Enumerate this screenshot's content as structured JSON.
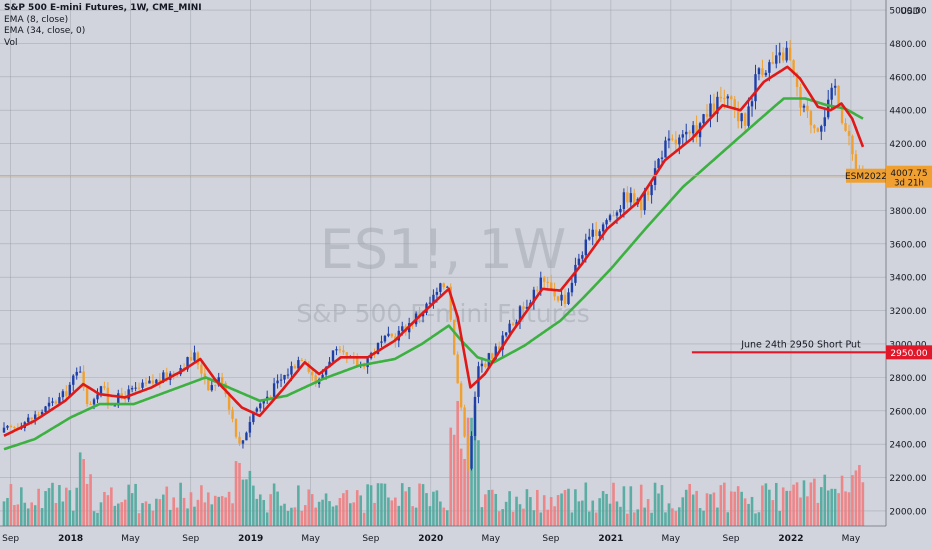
{
  "header": {
    "title": "S&P 500 E-mini Futures, 1W, CME_MINI",
    "indicators": [
      "EMA (8, close)",
      "EMA (34, close, 0)",
      "Vol"
    ]
  },
  "watermark": {
    "symbol": "ES1!, 1W",
    "name": "S&P 500 E-mini Futures"
  },
  "colors": {
    "background": "#d1d4dc",
    "grid": "#8a8d95",
    "up": "#1e3fa8",
    "down": "#f0a030",
    "ema8": "#e01818",
    "ema34": "#3cb040",
    "vol_up": "#4ea99d",
    "vol_down": "#ee7d7f",
    "price_line": "#f0a030",
    "annotation": "#e0182a"
  },
  "chart_data": {
    "type": "candlestick",
    "y_axis": {
      "unit_label": "USD",
      "ticks": [
        2000,
        2200,
        2400,
        2600,
        2800,
        3000,
        3200,
        3400,
        3600,
        3800,
        4000,
        4200,
        4400,
        4600,
        4800,
        5000
      ],
      "ylim": [
        1910,
        5060
      ]
    },
    "x_axis": {
      "ticks": [
        {
          "label": "Sep",
          "t": 2017.667,
          "bold": false
        },
        {
          "label": "2018",
          "t": 2018.0,
          "bold": true
        },
        {
          "label": "May",
          "t": 2018.333,
          "bold": false
        },
        {
          "label": "Sep",
          "t": 2018.667,
          "bold": false
        },
        {
          "label": "2019",
          "t": 2019.0,
          "bold": true
        },
        {
          "label": "May",
          "t": 2019.333,
          "bold": false
        },
        {
          "label": "Sep",
          "t": 2019.667,
          "bold": false
        },
        {
          "label": "2020",
          "t": 2020.0,
          "bold": true
        },
        {
          "label": "May",
          "t": 2020.333,
          "bold": false
        },
        {
          "label": "Sep",
          "t": 2020.667,
          "bold": false
        },
        {
          "label": "2021",
          "t": 2021.0,
          "bold": true
        },
        {
          "label": "May",
          "t": 2021.333,
          "bold": false
        },
        {
          "label": "Sep",
          "t": 2021.667,
          "bold": false
        },
        {
          "label": "2022",
          "t": 2022.0,
          "bold": true
        },
        {
          "label": "May",
          "t": 2022.333,
          "bold": false
        }
      ],
      "range": [
        2017.63,
        2022.55
      ]
    },
    "anchors": [
      [
        2017.63,
        2470
      ],
      [
        2017.8,
        2560
      ],
      [
        2017.97,
        2690
      ],
      [
        2018.07,
        2870
      ],
      [
        2018.1,
        2620
      ],
      [
        2018.18,
        2760
      ],
      [
        2018.22,
        2640
      ],
      [
        2018.3,
        2690
      ],
      [
        2018.45,
        2760
      ],
      [
        2018.55,
        2810
      ],
      [
        2018.7,
        2930
      ],
      [
        2018.78,
        2740
      ],
      [
        2018.85,
        2800
      ],
      [
        2018.95,
        2380
      ],
      [
        2019.02,
        2590
      ],
      [
        2019.15,
        2750
      ],
      [
        2019.3,
        2940
      ],
      [
        2019.38,
        2750
      ],
      [
        2019.46,
        2950
      ],
      [
        2019.62,
        2870
      ],
      [
        2019.72,
        2990
      ],
      [
        2019.85,
        3080
      ],
      [
        2020.0,
        3240
      ],
      [
        2020.1,
        3380
      ],
      [
        2020.14,
        2960
      ],
      [
        2020.19,
        2480
      ],
      [
        2020.22,
        2250
      ],
      [
        2020.27,
        2850
      ],
      [
        2020.36,
        2950
      ],
      [
        2020.45,
        3100
      ],
      [
        2020.62,
        3380
      ],
      [
        2020.68,
        3310
      ],
      [
        2020.76,
        3270
      ],
      [
        2020.84,
        3550
      ],
      [
        2020.98,
        3740
      ],
      [
        2021.1,
        3890
      ],
      [
        2021.18,
        3820
      ],
      [
        2021.3,
        4180
      ],
      [
        2021.45,
        4240
      ],
      [
        2021.63,
        4480
      ],
      [
        2021.75,
        4320
      ],
      [
        2021.83,
        4660
      ],
      [
        2021.92,
        4680
      ],
      [
        2021.99,
        4760
      ],
      [
        2022.06,
        4420
      ],
      [
        2022.15,
        4300
      ],
      [
        2022.22,
        4440
      ],
      [
        2022.26,
        4560
      ],
      [
        2022.3,
        4330
      ],
      [
        2022.36,
        4100
      ],
      [
        2022.4,
        4010
      ]
    ],
    "ema8_anchors": [
      [
        2017.63,
        2450
      ],
      [
        2017.8,
        2540
      ],
      [
        2017.97,
        2660
      ],
      [
        2018.07,
        2760
      ],
      [
        2018.16,
        2700
      ],
      [
        2018.3,
        2680
      ],
      [
        2018.45,
        2740
      ],
      [
        2018.62,
        2840
      ],
      [
        2018.72,
        2910
      ],
      [
        2018.8,
        2790
      ],
      [
        2018.95,
        2620
      ],
      [
        2019.05,
        2570
      ],
      [
        2019.18,
        2730
      ],
      [
        2019.3,
        2890
      ],
      [
        2019.38,
        2820
      ],
      [
        2019.5,
        2920
      ],
      [
        2019.65,
        2920
      ],
      [
        2019.8,
        3020
      ],
      [
        2019.95,
        3180
      ],
      [
        2020.1,
        3330
      ],
      [
        2020.15,
        3160
      ],
      [
        2020.22,
        2740
      ],
      [
        2020.3,
        2820
      ],
      [
        2020.45,
        3070
      ],
      [
        2020.62,
        3330
      ],
      [
        2020.72,
        3320
      ],
      [
        2020.84,
        3480
      ],
      [
        2020.98,
        3690
      ],
      [
        2021.15,
        3850
      ],
      [
        2021.3,
        4100
      ],
      [
        2021.45,
        4230
      ],
      [
        2021.62,
        4430
      ],
      [
        2021.72,
        4400
      ],
      [
        2021.85,
        4570
      ],
      [
        2021.98,
        4660
      ],
      [
        2022.05,
        4590
      ],
      [
        2022.15,
        4420
      ],
      [
        2022.22,
        4400
      ],
      [
        2022.28,
        4440
      ],
      [
        2022.34,
        4350
      ],
      [
        2022.4,
        4180
      ]
    ],
    "ema34_anchors": [
      [
        2017.63,
        2370
      ],
      [
        2017.8,
        2430
      ],
      [
        2018.0,
        2560
      ],
      [
        2018.16,
        2640
      ],
      [
        2018.35,
        2640
      ],
      [
        2018.55,
        2720
      ],
      [
        2018.75,
        2800
      ],
      [
        2018.92,
        2720
      ],
      [
        2019.05,
        2660
      ],
      [
        2019.2,
        2690
      ],
      [
        2019.4,
        2790
      ],
      [
        2019.6,
        2870
      ],
      [
        2019.8,
        2910
      ],
      [
        2019.95,
        3000
      ],
      [
        2020.1,
        3110
      ],
      [
        2020.17,
        3020
      ],
      [
        2020.26,
        2920
      ],
      [
        2020.35,
        2890
      ],
      [
        2020.52,
        2990
      ],
      [
        2020.72,
        3140
      ],
      [
        2020.85,
        3280
      ],
      [
        2021.0,
        3450
      ],
      [
        2021.2,
        3700
      ],
      [
        2021.4,
        3940
      ],
      [
        2021.6,
        4130
      ],
      [
        2021.8,
        4320
      ],
      [
        2021.96,
        4470
      ],
      [
        2022.08,
        4470
      ],
      [
        2022.2,
        4430
      ],
      [
        2022.3,
        4410
      ],
      [
        2022.4,
        4350
      ]
    ],
    "current_price": {
      "symbol": "ESM2022",
      "value": 4007.75,
      "label": "4007.75",
      "countdown": "3d 21h"
    },
    "annotation": {
      "text": "June 24th 2950 Short Put",
      "level": 2950,
      "label": "2950.00",
      "t_start": 2021.45
    }
  }
}
